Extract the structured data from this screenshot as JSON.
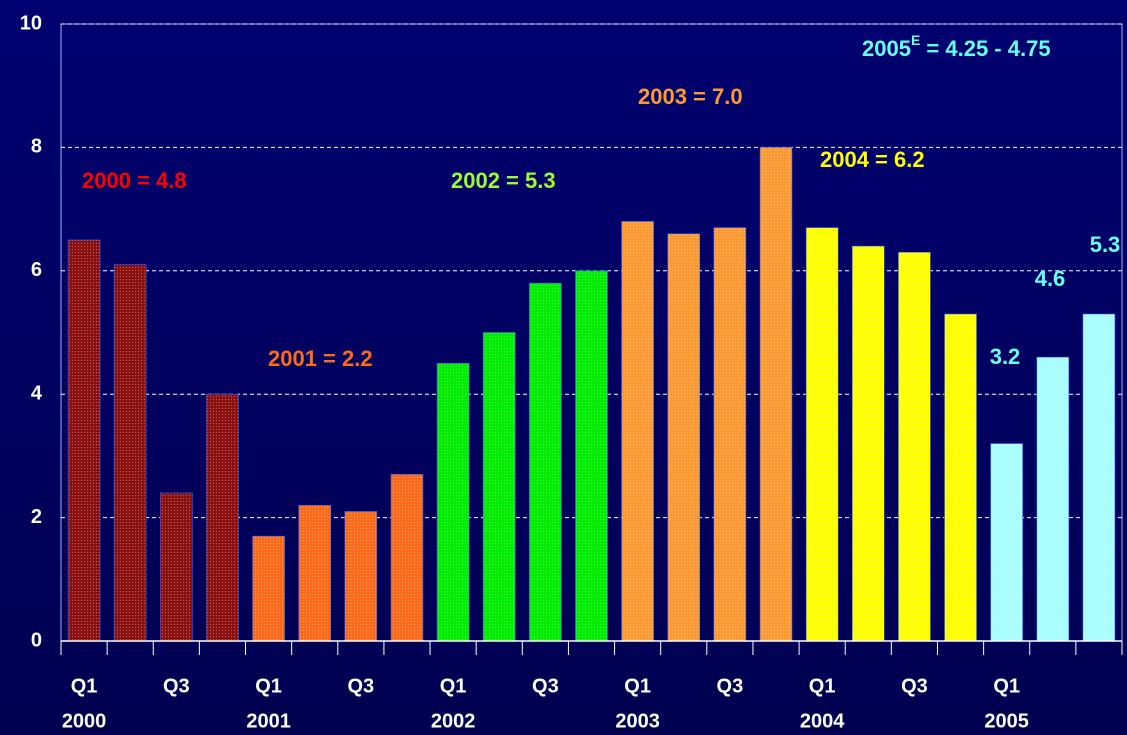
{
  "chart_data": {
    "type": "bar",
    "categories": [
      "Q1",
      null,
      "Q3",
      null,
      "Q1",
      null,
      "Q3",
      null,
      "Q1",
      null,
      "Q3",
      null,
      "Q1",
      null,
      "Q3",
      null,
      "Q1",
      null,
      "Q3",
      null,
      "Q1",
      null,
      null
    ],
    "category_groups": [
      "2000",
      "2001",
      "2002",
      "2003",
      "2004",
      "2005"
    ],
    "group_colors": [
      "#8b1010",
      "#ff6a1a",
      "#00ee00",
      "#ff9a33",
      "#ffff00",
      "#a8ffff"
    ],
    "values": [
      6.5,
      6.1,
      2.4,
      4.0,
      1.7,
      2.2,
      2.1,
      2.7,
      4.5,
      5.0,
      5.8,
      6.0,
      6.8,
      6.6,
      6.7,
      8.0,
      6.7,
      6.4,
      6.3,
      5.3,
      3.2,
      4.6,
      5.3
    ],
    "value_labels": [
      null,
      null,
      null,
      null,
      null,
      null,
      null,
      null,
      null,
      null,
      null,
      null,
      null,
      null,
      null,
      null,
      null,
      null,
      null,
      null,
      "3.2",
      "4.6",
      "5.3"
    ],
    "value_label_color": "#66ffff",
    "ylim": [
      0,
      10
    ],
    "yticks": [
      0,
      2,
      4,
      6,
      8,
      10
    ],
    "grid": true,
    "annotations": [
      {
        "text": "2000 = 4.8",
        "color": "#ff0000"
      },
      {
        "text": "2001 = 2.2",
        "color": "#ff6a1a"
      },
      {
        "text": "2002 = 5.3",
        "color": "#99ff33"
      },
      {
        "text": "2003 =  7.0",
        "color": "#ff9a33"
      },
      {
        "text": "2004 =  6.2",
        "color": "#ffff00"
      },
      {
        "text": "2005",
        "sup": "E",
        "rest": " =  4.25 - 4.75",
        "color": "#66ffff"
      }
    ]
  }
}
